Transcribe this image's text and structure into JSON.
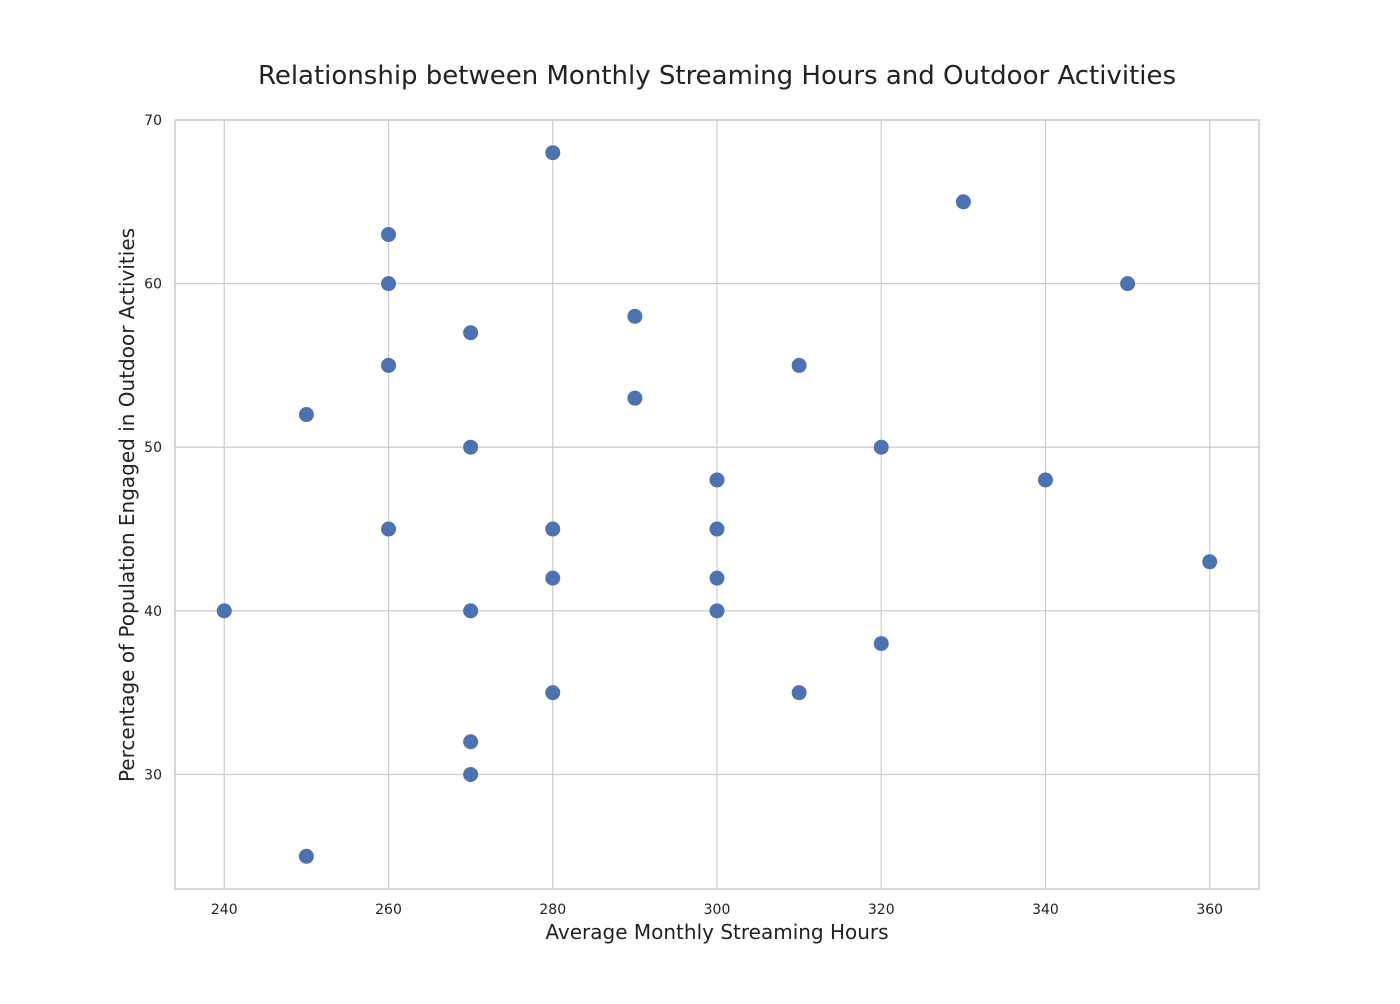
{
  "chart_data": {
    "type": "scatter",
    "title": "Relationship between Monthly Streaming Hours and Outdoor Activities",
    "xlabel": "Average Monthly Streaming Hours",
    "ylabel": "Percentage of Population Engaged in Outdoor Activities",
    "xlim": [
      234,
      366
    ],
    "ylim": [
      23,
      70
    ],
    "xticks": [
      240,
      260,
      280,
      300,
      320,
      340,
      360
    ],
    "yticks": [
      30,
      40,
      50,
      60,
      70
    ],
    "grid": true,
    "legend": "none",
    "point_color": "#4c72b0",
    "points": [
      {
        "x": 240,
        "y": 40
      },
      {
        "x": 250,
        "y": 52
      },
      {
        "x": 250,
        "y": 25
      },
      {
        "x": 260,
        "y": 63
      },
      {
        "x": 260,
        "y": 60
      },
      {
        "x": 260,
        "y": 55
      },
      {
        "x": 260,
        "y": 45
      },
      {
        "x": 270,
        "y": 57
      },
      {
        "x": 270,
        "y": 50
      },
      {
        "x": 270,
        "y": 40
      },
      {
        "x": 270,
        "y": 32
      },
      {
        "x": 270,
        "y": 30
      },
      {
        "x": 280,
        "y": 68
      },
      {
        "x": 280,
        "y": 45
      },
      {
        "x": 280,
        "y": 42
      },
      {
        "x": 280,
        "y": 35
      },
      {
        "x": 290,
        "y": 58
      },
      {
        "x": 290,
        "y": 53
      },
      {
        "x": 300,
        "y": 48
      },
      {
        "x": 300,
        "y": 45
      },
      {
        "x": 300,
        "y": 42
      },
      {
        "x": 300,
        "y": 40
      },
      {
        "x": 310,
        "y": 55
      },
      {
        "x": 310,
        "y": 35
      },
      {
        "x": 320,
        "y": 50
      },
      {
        "x": 320,
        "y": 38
      },
      {
        "x": 330,
        "y": 65
      },
      {
        "x": 340,
        "y": 48
      },
      {
        "x": 350,
        "y": 60
      },
      {
        "x": 360,
        "y": 43
      }
    ]
  }
}
